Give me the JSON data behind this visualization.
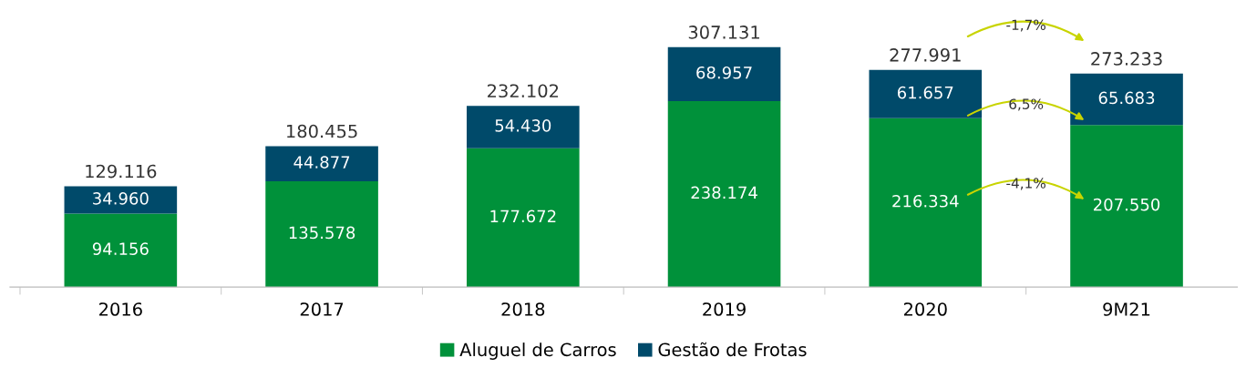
{
  "chart_data": {
    "type": "bar",
    "stacked": true,
    "categories": [
      "2016",
      "2017",
      "2018",
      "2019",
      "2020",
      "9M21"
    ],
    "series": [
      {
        "name": "Aluguel de Carros",
        "color": "#00913a",
        "values": [
          94156,
          135578,
          177672,
          238174,
          216334,
          207550
        ],
        "value_labels": [
          "94.156",
          "135.578",
          "177.672",
          "238.174",
          "216.334",
          "207.550"
        ]
      },
      {
        "name": "Gestão de Frotas",
        "color": "#004a6a",
        "values": [
          34960,
          44877,
          54430,
          68957,
          61657,
          65683
        ],
        "value_labels": [
          "34.960",
          "44.877",
          "54.430",
          "68.957",
          "61.657",
          "65.683"
        ]
      }
    ],
    "totals": [
      "129.116",
      "180.455",
      "232.102",
      "307.131",
      "277.991",
      "273.233"
    ],
    "annotations": [
      "-1,7%",
      "6,5%",
      "-4,1%"
    ],
    "legend": "bottom",
    "grid": false
  }
}
